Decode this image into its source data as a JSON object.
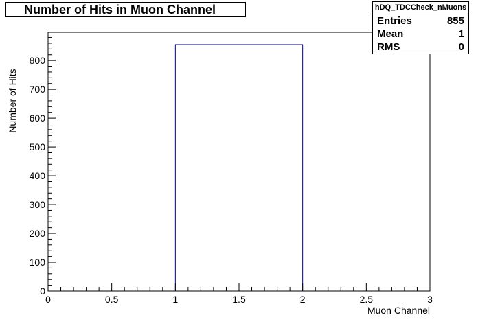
{
  "chart_data": {
    "type": "bar",
    "title": "Number of Hits in Muon Channel",
    "xlabel": "Muon Channel",
    "ylabel": "Number of Hits",
    "xlim": [
      0,
      3
    ],
    "ylim": [
      0,
      898
    ],
    "bins": [
      {
        "low": 1,
        "high": 2,
        "value": 855
      }
    ],
    "x_ticks": [
      "0",
      "0.5",
      "1",
      "1.5",
      "2",
      "2.5",
      "3"
    ],
    "y_ticks": [
      "0",
      "100",
      "200",
      "300",
      "400",
      "500",
      "600",
      "700",
      "800"
    ],
    "bar_color": "#000080",
    "grid": false
  },
  "stats": {
    "name": "hDQ_TDCCheck_nMuons",
    "rows": [
      {
        "label": "Entries",
        "value": "855"
      },
      {
        "label": "Mean",
        "value": "1"
      },
      {
        "label": "RMS",
        "value": "0"
      }
    ]
  }
}
